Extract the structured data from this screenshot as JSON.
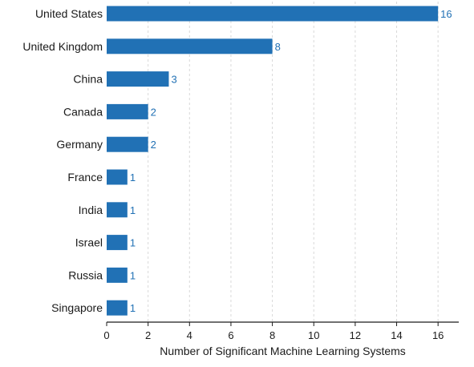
{
  "chart_data": {
    "type": "bar",
    "orientation": "horizontal",
    "categories": [
      "United States",
      "United Kingdom",
      "China",
      "Canada",
      "Germany",
      "France",
      "India",
      "Israel",
      "Russia",
      "Singapore"
    ],
    "values": [
      16,
      8,
      3,
      2,
      2,
      1,
      1,
      1,
      1,
      1
    ],
    "xlabel": "Number of Significant Machine Learning Systems",
    "ylabel": "",
    "title": "",
    "xlim": [
      0,
      17
    ],
    "xticks": [
      0,
      2,
      4,
      6,
      8,
      10,
      12,
      14,
      16
    ],
    "grid": "vertical-dashed",
    "legend": "none",
    "colors": {
      "bar": "#2171b5",
      "value_label": "#2171b5",
      "grid": "#d9d9d9",
      "axis": "#1a1a1a"
    }
  }
}
